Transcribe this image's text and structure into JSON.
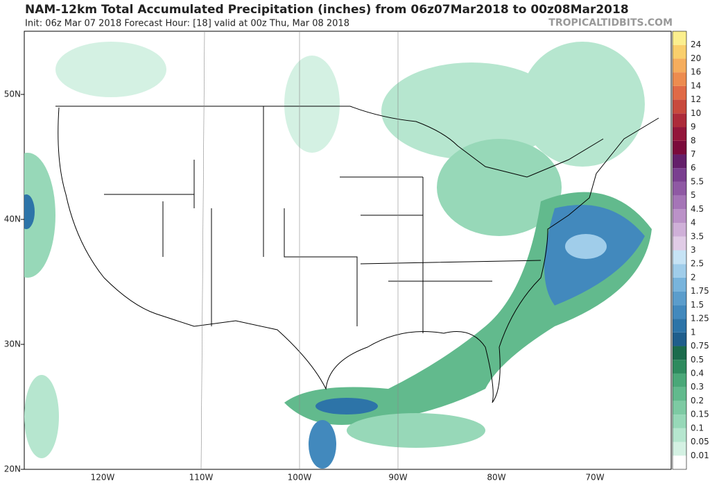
{
  "header": {
    "title": "NAM-12km Total Accumulated Precipitation (inches) from 06z07Mar2018 to 00z08Mar2018",
    "subtitle": "Init: 06z Mar 07 2018   Forecast Hour: [18]   valid at 00z Thu, Mar 08 2018",
    "watermark": "TROPICALTIDBITS.COM"
  },
  "map": {
    "lat_labels": [
      "50N",
      "40N",
      "30N",
      "20N"
    ],
    "lon_labels": [
      "120W",
      "110W",
      "100W",
      "90W",
      "80W",
      "70W"
    ]
  },
  "legend": {
    "labels": [
      "0.01",
      "0.05",
      "0.1",
      "0.15",
      "0.2",
      "0.3",
      "0.4",
      "0.5",
      "0.75",
      "1",
      "1.25",
      "1.5",
      "1.75",
      "2",
      "2.5",
      "3",
      "3.5",
      "4",
      "4.5",
      "5",
      "5.5",
      "6",
      "7",
      "8",
      "9",
      "10",
      "12",
      "14",
      "16",
      "20",
      "24"
    ],
    "colors": [
      "#ffffff",
      "#d4f1e3",
      "#b6e6cf",
      "#97d8b8",
      "#7dcaa3",
      "#62ba8d",
      "#4aa878",
      "#2e8b5e",
      "#1b6b4c",
      "#1f5e8c",
      "#2d74a8",
      "#4289bd",
      "#5b9dcc",
      "#78b4dc",
      "#a0cdea",
      "#c6e3f5",
      "#e0cce6",
      "#cfb0d8",
      "#bb92c8",
      "#a575b7",
      "#8f59a4",
      "#7a3f90",
      "#641f6a",
      "#7b0a3b",
      "#93163a",
      "#ad2b3a",
      "#c84a3d",
      "#e06a46",
      "#ed8c4f",
      "#f5ad5d",
      "#f9cf6c",
      "#fbef8e"
    ]
  }
}
